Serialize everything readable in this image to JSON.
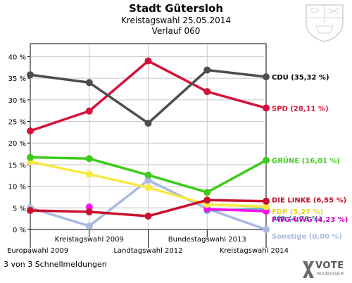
{
  "header": {
    "title": "Stadt Gütersloh",
    "subtitle": "Kreistagswahl 25.05.2014",
    "subtitle2": "Verlauf 060"
  },
  "footer": {
    "text": "3 von 3 Schnellmeldungen"
  },
  "logo": {
    "text": "VOTE",
    "subtext": "MANAGER"
  },
  "chart_data": {
    "type": "line",
    "categories": [
      "Europawahl 2009",
      "Kreistagswahl 2009",
      "Landtagswahl 2012",
      "Bundestagswahl 2013",
      "Kreistagswahl 2014"
    ],
    "y_ticks": [
      "0 %",
      "5 %",
      "10 %",
      "15 %",
      "20 %",
      "25 %",
      "30 %",
      "35 %",
      "40 %"
    ],
    "ylim": [
      0,
      43
    ],
    "grid": true,
    "legend": "right-end labels",
    "series": [
      {
        "name": "CDU",
        "label": "CDU (35,32 %)",
        "color": "#4d4d4d",
        "label_color": "#000000",
        "values": [
          35.8,
          34.0,
          24.6,
          36.9,
          35.32
        ]
      },
      {
        "name": "SPD",
        "label": "SPD (28,11 %)",
        "color": "#d4113a",
        "label_color": "#d4113a",
        "values": [
          22.8,
          27.4,
          39.0,
          31.9,
          28.11
        ]
      },
      {
        "name": "GRÜNE",
        "label": "GRÜNE (16,01 %)",
        "color": "#3ecb1b",
        "label_color": "#3ecb1b",
        "values": [
          16.7,
          16.4,
          12.6,
          8.6,
          16.01
        ]
      },
      {
        "name": "DIE LINKE",
        "label": "DIE LINKE (6,55 %)",
        "color": "#c8102e",
        "label_color": "#c8102e",
        "values": [
          4.4,
          4.1,
          3.1,
          6.8,
          6.55
        ]
      },
      {
        "name": "FDP",
        "label": "FDP (5,27 %)",
        "color": "#f7e843",
        "label_color": "#e8d51a",
        "values": [
          15.7,
          12.8,
          9.7,
          5.8,
          5.27
        ]
      },
      {
        "name": "AfD",
        "label": "AfD (4,76 %)",
        "color": "#5fb7c1",
        "label_color": "#3a9aa6",
        "values": [
          null,
          null,
          null,
          4.4,
          4.76
        ]
      },
      {
        "name": "FWG-UWG",
        "label": "FWG-UWG (4,23 %)",
        "color": "#ff10f0",
        "label_color": "#d000c8",
        "values": [
          null,
          5.2,
          null,
          4.7,
          4.23
        ]
      },
      {
        "name": "Sonstige",
        "label": "Sonstige (0,00 %)",
        "color": "#aab9e0",
        "label_color": "#aab9e0",
        "values": [
          5.0,
          0.8,
          11.4,
          4.8,
          0.0
        ]
      }
    ]
  }
}
